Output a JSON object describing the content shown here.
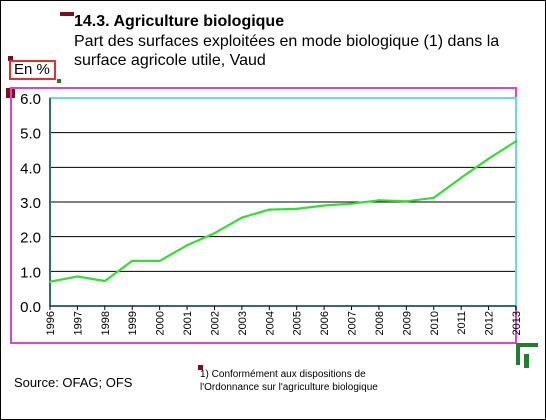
{
  "header": {
    "title": "14.3. Agriculture biologique",
    "subtitle": "Part des surfaces exploitées en mode biologique (1) dans la surface agricole utile, Vaud"
  },
  "unit_label": "En %",
  "source": "Source: OFAG; OFS",
  "footnote": "1) Conformément aux dispositions de l'Ordonnance sur l'agriculture biologique",
  "colors": {
    "line": "#33dd33",
    "plot_border": "#66dddd",
    "outer_border": "#dd44cc",
    "gridline": "#000000",
    "unit_box": "#e03030"
  },
  "chart_data": {
    "type": "line",
    "title": "14.3. Agriculture biologique",
    "ylabel": "En %",
    "xlabel": "",
    "ylim": [
      0,
      6
    ],
    "yticks": [
      "0.0",
      "1.0",
      "2.0",
      "3.0",
      "4.0",
      "5.0",
      "6.0"
    ],
    "grid": true,
    "categories": [
      "1996",
      "1997",
      "1998",
      "1999",
      "2000",
      "2001",
      "2002",
      "2003",
      "2004",
      "2005",
      "2006",
      "2007",
      "2008",
      "2009",
      "2010",
      "2011",
      "2012",
      "2013"
    ],
    "series": [
      {
        "values": [
          0.7,
          0.85,
          0.72,
          1.3,
          1.3,
          1.75,
          2.1,
          2.55,
          2.78,
          2.8,
          2.9,
          2.95,
          3.05,
          3.02,
          3.12,
          3.7,
          4.25,
          4.75
        ]
      }
    ]
  }
}
